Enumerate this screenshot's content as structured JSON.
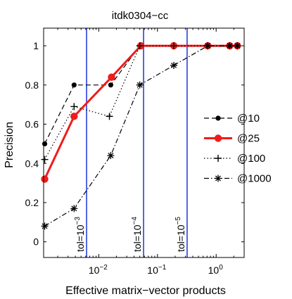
{
  "chart_data": {
    "type": "line",
    "title": "itdk0304−cc",
    "xlabel": "Effective matrix−vector products",
    "ylabel": "Precision",
    "xscale": "log",
    "xlim": [
      0.00115,
      3.0
    ],
    "ylim": [
      -0.08,
      1.09
    ],
    "grid": false,
    "legend_placement": "right",
    "yticks": [
      {
        "value": 0,
        "label": "0"
      },
      {
        "value": 0.2,
        "label": "0.2"
      },
      {
        "value": 0.4,
        "label": "0.4"
      },
      {
        "value": 0.6,
        "label": "0.6"
      },
      {
        "value": 0.8,
        "label": "0.8"
      },
      {
        "value": 1,
        "label": "1"
      }
    ],
    "xticks": [
      {
        "value": 0.01,
        "base": "10",
        "exp": "−2"
      },
      {
        "value": 0.1,
        "base": "10",
        "exp": "−1"
      },
      {
        "value": 1,
        "base": "10",
        "exp": "0"
      }
    ],
    "vlines": [
      {
        "x": 0.0062,
        "base": "tol=10",
        "exp": "−3"
      },
      {
        "x": 0.058,
        "base": "tol=10",
        "exp": "−4"
      },
      {
        "x": 0.32,
        "base": "tol=10",
        "exp": "−5"
      }
    ],
    "vline_color": "#2b3ee0",
    "series": [
      {
        "name": "@10",
        "color": "#000000",
        "width": 1.2,
        "dash": "7,4",
        "marker": "dot",
        "x": [
          0.0012,
          0.0038,
          0.016,
          0.05,
          0.19,
          0.72,
          1.7,
          2.3
        ],
        "y": [
          0.5,
          0.8,
          0.8,
          1.0,
          1.0,
          1.0,
          1.0,
          1.0
        ]
      },
      {
        "name": "@25",
        "color": "#ee1c1c",
        "width": 3,
        "dash": "",
        "marker": "bigdot",
        "x": [
          0.0012,
          0.0038,
          0.0165,
          0.052,
          0.19,
          0.72,
          1.7,
          2.3
        ],
        "y": [
          0.32,
          0.64,
          0.84,
          1.0,
          1.0,
          1.0,
          1.0,
          1.0
        ]
      },
      {
        "name": "@100",
        "color": "#000000",
        "width": 1.2,
        "dash": "1.5,3",
        "marker": "plus",
        "x": [
          0.0012,
          0.0038,
          0.0152,
          0.05,
          0.19,
          0.72,
          1.7,
          2.3
        ],
        "y": [
          0.42,
          0.69,
          0.64,
          1.0,
          1.0,
          1.0,
          1.0,
          1.0
        ]
      },
      {
        "name": "@1000",
        "color": "#000000",
        "width": 1.2,
        "dash": "7,3,1.5,3",
        "marker": "star",
        "x": [
          0.0012,
          0.0038,
          0.016,
          0.05,
          0.19,
          0.72,
          1.7,
          2.3
        ],
        "y": [
          0.08,
          0.17,
          0.44,
          0.8,
          0.9,
          1.0,
          1.0,
          1.0
        ]
      }
    ]
  }
}
